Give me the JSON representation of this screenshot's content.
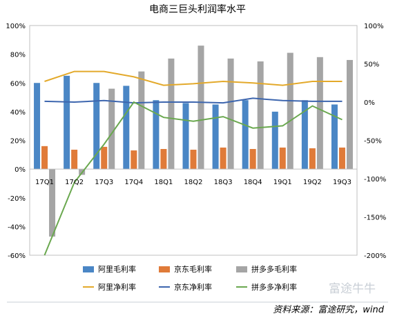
{
  "chart_data": {
    "type": "bar",
    "title": "电商三巨头利润率水平",
    "categories": [
      "17Q1",
      "17Q2",
      "17Q3",
      "17Q4",
      "18Q1",
      "18Q2",
      "18Q3",
      "18Q4",
      "19Q1",
      "19Q2",
      "19Q3"
    ],
    "y_left": {
      "min": -60,
      "max": 100,
      "step": 20,
      "tick_labels": [
        "-60%",
        "-40%",
        "-20%",
        "0%",
        "20%",
        "40%",
        "60%",
        "80%",
        "100%"
      ]
    },
    "y_right": {
      "min": -200,
      "max": 100,
      "step": 50,
      "tick_labels": [
        "-200%",
        "-150%",
        "-100%",
        "-50%",
        "0%",
        "50%",
        "100%"
      ]
    },
    "grid": false,
    "legend_placement": "bottom",
    "bar_series": [
      {
        "name": "阿里毛利率",
        "color": "#4a86c5",
        "axis": "left",
        "values": [
          60,
          65,
          60,
          58,
          48,
          46,
          45,
          48,
          40,
          48,
          45
        ]
      },
      {
        "name": "京东毛利率",
        "color": "#e07b39",
        "axis": "left",
        "values": [
          16,
          13.5,
          15.5,
          13,
          14,
          13.5,
          15,
          14,
          15,
          14.5,
          15
        ]
      },
      {
        "name": "拼多多毛利率",
        "color": "#a5a5a5",
        "axis": "left",
        "values": [
          -47,
          -4,
          56,
          68,
          77,
          86,
          77,
          75,
          81,
          78,
          76
        ]
      }
    ],
    "line_series": [
      {
        "name": "阿里净利率",
        "color": "#e3a92a",
        "axis": "right",
        "values": [
          27,
          40,
          40,
          33,
          22,
          24,
          27,
          25,
          22,
          27,
          27
        ]
      },
      {
        "name": "京东净利率",
        "color": "#3c65ae",
        "axis": "right",
        "values": [
          1,
          0,
          2,
          -1,
          0,
          0,
          -1,
          5,
          2,
          1,
          1
        ]
      },
      {
        "name": "拼多多净利率",
        "color": "#6aa84f",
        "axis": "right",
        "values": [
          -200,
          -105,
          -55,
          0,
          -20,
          -25,
          -19,
          -34,
          -31,
          -5,
          -23
        ]
      }
    ],
    "source": "资料来源：富途研究，wind",
    "watermark": "富途牛牛"
  }
}
